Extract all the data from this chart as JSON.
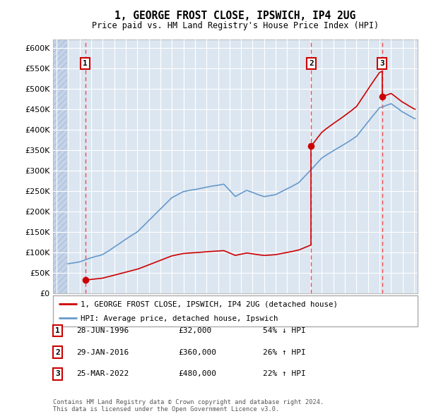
{
  "title": "1, GEORGE FROST CLOSE, IPSWICH, IP4 2UG",
  "subtitle": "Price paid vs. HM Land Registry's House Price Index (HPI)",
  "legend_line1": "1, GEORGE FROST CLOSE, IPSWICH, IP4 2UG (detached house)",
  "legend_line2": "HPI: Average price, detached house, Ipswich",
  "footnote": "Contains HM Land Registry data © Crown copyright and database right 2024.\nThis data is licensed under the Open Government Licence v3.0.",
  "transactions": [
    {
      "num": 1,
      "date": "28-JUN-1996",
      "price": 32000,
      "rel": "54% ↓ HPI",
      "year": 1996.49
    },
    {
      "num": 2,
      "date": "29-JAN-2016",
      "price": 360000,
      "rel": "26% ↑ HPI",
      "year": 2016.08
    },
    {
      "num": 3,
      "date": "25-MAR-2022",
      "price": 480000,
      "rel": "22% ↑ HPI",
      "year": 2022.23
    }
  ],
  "red_line_color": "#cc0000",
  "blue_line_color": "#6699cc",
  "dashed_line_color": "#ee3333",
  "background_plot": "#dce6f1",
  "background_hatch": "#c5d3e8",
  "grid_color": "#ffffff",
  "ylim": [
    0,
    620000
  ],
  "yticks": [
    0,
    50000,
    100000,
    150000,
    200000,
    250000,
    300000,
    350000,
    400000,
    450000,
    500000,
    550000,
    600000
  ],
  "xlim_start": 1993.7,
  "xlim_end": 2025.3,
  "hpi_hatch_end": 1994.92
}
